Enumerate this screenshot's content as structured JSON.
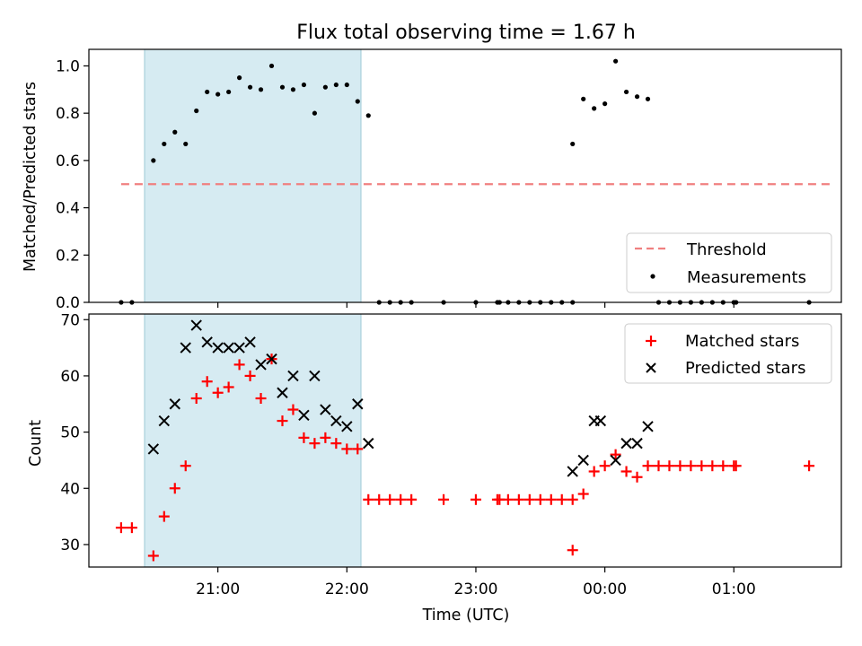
{
  "chart_data": [
    {
      "type": "scatter",
      "title": "Flux total observing time = 1.67 h",
      "xlabel": "",
      "ylabel": "Matched/Predicted stars",
      "ylim": [
        0,
        1.07
      ],
      "x_unit": "time (UTC, hh:mm)",
      "highlight_span": [
        "20:30",
        "22:10"
      ],
      "threshold": {
        "name": "Threshold",
        "value": 0.5,
        "x_range": [
          "20:15",
          "01:45"
        ],
        "color": "#f08080",
        "style": "dashed"
      },
      "yticks": [
        "0.0",
        "0.2",
        "0.4",
        "0.6",
        "0.8",
        "1.0"
      ],
      "legend": {
        "placement": "lower-right",
        "entries": [
          "Threshold",
          "Measurements"
        ]
      },
      "series": [
        {
          "name": "Measurements",
          "color": "#000000",
          "marker": "dot",
          "points": [
            [
              "20:15",
              0
            ],
            [
              "20:20",
              0
            ],
            [
              "20:30",
              0.6
            ],
            [
              "20:35",
              0.67
            ],
            [
              "20:40",
              0.72
            ],
            [
              "20:45",
              0.67
            ],
            [
              "20:50",
              0.81
            ],
            [
              "20:55",
              0.89
            ],
            [
              "21:00",
              0.88
            ],
            [
              "21:05",
              0.89
            ],
            [
              "21:10",
              0.95
            ],
            [
              "21:15",
              0.91
            ],
            [
              "21:20",
              0.9
            ],
            [
              "21:25",
              1.0
            ],
            [
              "21:30",
              0.91
            ],
            [
              "21:35",
              0.9
            ],
            [
              "21:40",
              0.92
            ],
            [
              "21:45",
              0.8
            ],
            [
              "21:50",
              0.91
            ],
            [
              "21:55",
              0.92
            ],
            [
              "22:00",
              0.92
            ],
            [
              "22:05",
              0.85
            ],
            [
              "22:10",
              0.79
            ],
            [
              "22:15",
              0
            ],
            [
              "22:20",
              0
            ],
            [
              "22:25",
              0
            ],
            [
              "22:30",
              0
            ],
            [
              "22:45",
              0
            ],
            [
              "23:00",
              0
            ],
            [
              "23:10",
              0
            ],
            [
              "23:11",
              0
            ],
            [
              "23:15",
              0
            ],
            [
              "23:20",
              0
            ],
            [
              "23:25",
              0
            ],
            [
              "23:30",
              0
            ],
            [
              "23:35",
              0
            ],
            [
              "23:40",
              0
            ],
            [
              "23:45",
              0
            ],
            [
              "23:45",
              0.67
            ],
            [
              "23:50",
              0.86
            ],
            [
              "23:55",
              0.82
            ],
            [
              "00:00",
              0.84
            ],
            [
              "00:05",
              1.02
            ],
            [
              "00:10",
              0.89
            ],
            [
              "00:15",
              0.87
            ],
            [
              "00:20",
              0.86
            ],
            [
              "00:25",
              0
            ],
            [
              "00:30",
              0
            ],
            [
              "00:35",
              0
            ],
            [
              "00:40",
              0
            ],
            [
              "00:45",
              0
            ],
            [
              "00:50",
              0
            ],
            [
              "00:55",
              0
            ],
            [
              "01:00",
              0
            ],
            [
              "01:01",
              0
            ],
            [
              "01:35",
              0
            ]
          ]
        }
      ]
    },
    {
      "type": "scatter",
      "title": "",
      "xlabel": "Time (UTC)",
      "ylabel": "Count",
      "ylim": [
        26,
        71
      ],
      "xlim": [
        "20:00",
        "01:50"
      ],
      "xticks": [
        "21:00",
        "22:00",
        "23:00",
        "00:00",
        "01:00"
      ],
      "yticks": [
        "30",
        "40",
        "50",
        "60",
        "70"
      ],
      "highlight_span": [
        "20:30",
        "22:10"
      ],
      "legend": {
        "placement": "top-right",
        "entries": [
          "Matched stars",
          "Predicted stars"
        ]
      },
      "series": [
        {
          "name": "Matched stars",
          "color": "#ff0000",
          "marker": "plus",
          "points": [
            [
              "20:15",
              33
            ],
            [
              "20:20",
              33
            ],
            [
              "20:30",
              28
            ],
            [
              "20:35",
              35
            ],
            [
              "20:40",
              40
            ],
            [
              "20:45",
              44
            ],
            [
              "20:50",
              56
            ],
            [
              "20:55",
              59
            ],
            [
              "21:00",
              57
            ],
            [
              "21:05",
              58
            ],
            [
              "21:10",
              62
            ],
            [
              "21:15",
              60
            ],
            [
              "21:20",
              56
            ],
            [
              "21:25",
              63
            ],
            [
              "21:30",
              52
            ],
            [
              "21:35",
              54
            ],
            [
              "21:40",
              49
            ],
            [
              "21:45",
              48
            ],
            [
              "21:50",
              49
            ],
            [
              "21:55",
              48
            ],
            [
              "22:00",
              47
            ],
            [
              "22:05",
              47
            ],
            [
              "22:10",
              38
            ],
            [
              "22:15",
              38
            ],
            [
              "22:20",
              38
            ],
            [
              "22:25",
              38
            ],
            [
              "22:30",
              38
            ],
            [
              "22:45",
              38
            ],
            [
              "23:00",
              38
            ],
            [
              "23:10",
              38
            ],
            [
              "23:11",
              38
            ],
            [
              "23:15",
              38
            ],
            [
              "23:20",
              38
            ],
            [
              "23:25",
              38
            ],
            [
              "23:30",
              38
            ],
            [
              "23:35",
              38
            ],
            [
              "23:40",
              38
            ],
            [
              "23:45",
              38
            ],
            [
              "23:45",
              29
            ],
            [
              "23:50",
              39
            ],
            [
              "23:55",
              43
            ],
            [
              "00:00",
              44
            ],
            [
              "00:05",
              46
            ],
            [
              "00:10",
              43
            ],
            [
              "00:15",
              42
            ],
            [
              "00:20",
              44
            ],
            [
              "00:25",
              44
            ],
            [
              "00:30",
              44
            ],
            [
              "00:35",
              44
            ],
            [
              "00:40",
              44
            ],
            [
              "00:45",
              44
            ],
            [
              "00:50",
              44
            ],
            [
              "00:55",
              44
            ],
            [
              "01:00",
              44
            ],
            [
              "01:01",
              44
            ],
            [
              "01:35",
              44
            ]
          ]
        },
        {
          "name": "Predicted stars",
          "color": "#000000",
          "marker": "x",
          "points": [
            [
              "20:30",
              47
            ],
            [
              "20:35",
              52
            ],
            [
              "20:40",
              55
            ],
            [
              "20:45",
              65
            ],
            [
              "20:50",
              69
            ],
            [
              "20:55",
              66
            ],
            [
              "21:00",
              65
            ],
            [
              "21:05",
              65
            ],
            [
              "21:10",
              65
            ],
            [
              "21:15",
              66
            ],
            [
              "21:20",
              62
            ],
            [
              "21:25",
              63
            ],
            [
              "21:30",
              57
            ],
            [
              "21:35",
              60
            ],
            [
              "21:40",
              53
            ],
            [
              "21:45",
              60
            ],
            [
              "21:50",
              54
            ],
            [
              "21:55",
              52
            ],
            [
              "22:00",
              51
            ],
            [
              "22:05",
              55
            ],
            [
              "22:10",
              48
            ],
            [
              "23:45",
              43
            ],
            [
              "23:50",
              45
            ],
            [
              "23:55",
              52
            ],
            [
              "23:58",
              52
            ],
            [
              "00:05",
              45
            ],
            [
              "00:10",
              48
            ],
            [
              "00:15",
              48
            ],
            [
              "00:20",
              51
            ]
          ]
        }
      ]
    }
  ]
}
